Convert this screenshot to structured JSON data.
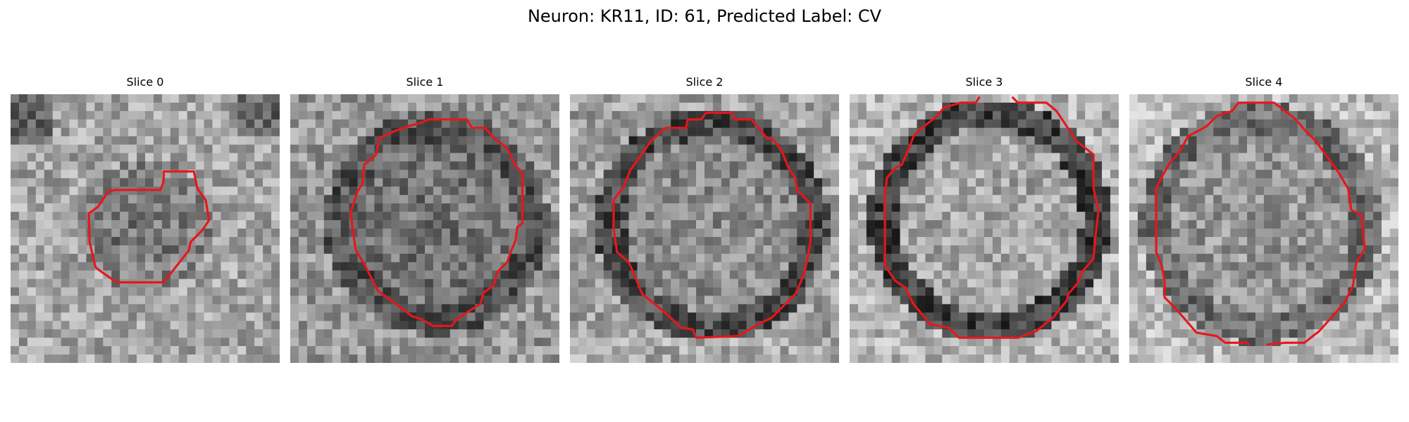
{
  "figure": {
    "title": "Neuron: KR11, ID: 61, Predicted Label: CV"
  },
  "colors": {
    "contour": "#e8161b",
    "background": "#ffffff",
    "text": "#000000"
  },
  "slices": [
    {
      "label": "Slice 0",
      "image": "grayscale-microscopy-patch",
      "contour_color": "#e8161b"
    },
    {
      "label": "Slice 1",
      "image": "grayscale-microscopy-patch",
      "contour_color": "#e8161b"
    },
    {
      "label": "Slice 2",
      "image": "grayscale-microscopy-patch",
      "contour_color": "#e8161b"
    },
    {
      "label": "Slice 3",
      "image": "grayscale-microscopy-patch",
      "contour_color": "#e8161b"
    },
    {
      "label": "Slice 4",
      "image": "grayscale-microscopy-patch",
      "contour_color": "#e8161b"
    }
  ]
}
